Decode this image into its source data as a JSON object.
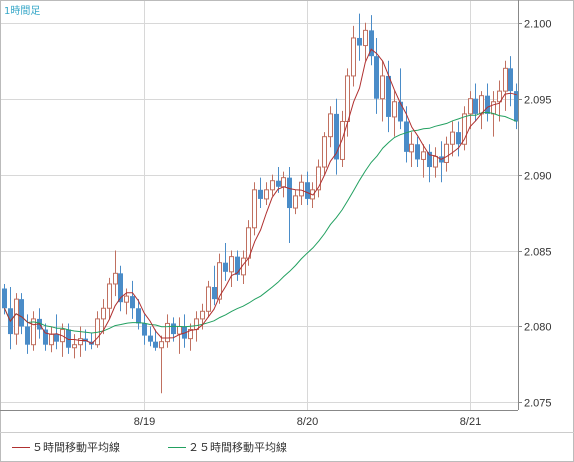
{
  "chart_data": {
    "type": "candlestick",
    "title": "1時間足",
    "ylim": [
      2.0745,
      2.1015
    ],
    "yticks": [
      "2.100",
      "2.095",
      "2.090",
      "2.085",
      "2.080",
      "2.075"
    ],
    "xticks": [
      {
        "label": "8/19",
        "index": 24
      },
      {
        "label": "8/20",
        "index": 52
      },
      {
        "label": "8/21",
        "index": 80
      }
    ],
    "grid": true,
    "colors": {
      "up": "#c07060",
      "down": "#4a8cc8",
      "ma5": "#b03030",
      "ma25": "#22a060",
      "grid": "#d8d8d8",
      "frame": "#888888",
      "title": "#36a7c8"
    },
    "legend": [
      {
        "label": "５時間移動平均線",
        "color": "#b03030"
      },
      {
        "label": "２５時間移動平均線",
        "color": "#22a060"
      }
    ],
    "ohlc": [
      [
        2.0825,
        2.0828,
        2.0808,
        2.0812
      ],
      [
        2.0812,
        2.0826,
        2.0785,
        2.0795
      ],
      [
        2.0795,
        2.0822,
        2.0788,
        2.0818
      ],
      [
        2.0818,
        2.0822,
        2.0795,
        2.08
      ],
      [
        2.08,
        2.0808,
        2.0782,
        2.0788
      ],
      [
        2.0788,
        2.081,
        2.0784,
        2.0805
      ],
      [
        2.0805,
        2.0812,
        2.0792,
        2.0798
      ],
      [
        2.0798,
        2.0802,
        2.0784,
        2.0788
      ],
      [
        2.0788,
        2.08,
        2.0783,
        2.0795
      ],
      [
        2.0795,
        2.0808,
        2.0785,
        2.079
      ],
      [
        2.079,
        2.0802,
        2.078,
        2.0798
      ],
      [
        2.0798,
        2.0802,
        2.0782,
        2.0786
      ],
      [
        2.0786,
        2.0795,
        2.0779,
        2.0788
      ],
      [
        2.0788,
        2.08,
        2.078,
        2.0792
      ],
      [
        2.0792,
        2.0798,
        2.0784,
        2.079
      ],
      [
        2.079,
        2.0796,
        2.0785,
        2.0788
      ],
      [
        2.0788,
        2.081,
        2.0786,
        2.0805
      ],
      [
        2.0805,
        2.0818,
        2.0795,
        2.0812
      ],
      [
        2.0812,
        2.0832,
        2.0805,
        2.0828
      ],
      [
        2.0828,
        2.085,
        2.082,
        2.0835
      ],
      [
        2.0835,
        2.084,
        2.081,
        2.0816
      ],
      [
        2.0816,
        2.0825,
        2.0808,
        2.082
      ],
      [
        2.082,
        2.083,
        2.0805,
        2.0812
      ],
      [
        2.0812,
        2.0818,
        2.0798,
        2.0802
      ],
      [
        2.0802,
        2.0808,
        2.0788,
        2.0794
      ],
      [
        2.0794,
        2.08,
        2.0787,
        2.079
      ],
      [
        2.079,
        2.0798,
        2.0784,
        2.0786
      ],
      [
        2.0786,
        2.0794,
        2.0756,
        2.079
      ],
      [
        2.079,
        2.0808,
        2.0786,
        2.0802
      ],
      [
        2.0802,
        2.0806,
        2.079,
        2.0795
      ],
      [
        2.0795,
        2.0806,
        2.0782,
        2.08
      ],
      [
        2.08,
        2.0808,
        2.0786,
        2.0792
      ],
      [
        2.0792,
        2.0802,
        2.0784,
        2.0798
      ],
      [
        2.0798,
        2.081,
        2.079,
        2.0805
      ],
      [
        2.0805,
        2.0815,
        2.0798,
        2.081
      ],
      [
        2.081,
        2.083,
        2.0806,
        2.0826
      ],
      [
        2.0826,
        2.084,
        2.0814,
        2.0818
      ],
      [
        2.0818,
        2.0848,
        2.0815,
        2.0842
      ],
      [
        2.0842,
        2.0855,
        2.083,
        2.0836
      ],
      [
        2.0836,
        2.085,
        2.0826,
        2.0846
      ],
      [
        2.0846,
        2.085,
        2.083,
        2.0834
      ],
      [
        2.0834,
        2.085,
        2.0828,
        2.0845
      ],
      [
        2.0845,
        2.087,
        2.084,
        2.0865
      ],
      [
        2.0865,
        2.0895,
        2.086,
        2.089
      ],
      [
        2.089,
        2.0898,
        2.0878,
        2.0884
      ],
      [
        2.0884,
        2.0895,
        2.088,
        2.089
      ],
      [
        2.089,
        2.09,
        2.0886,
        2.0896
      ],
      [
        2.0896,
        2.0905,
        2.0888,
        2.0892
      ],
      [
        2.0892,
        2.0902,
        2.0885,
        2.0898
      ],
      [
        2.0898,
        2.0905,
        2.0855,
        2.0878
      ],
      [
        2.0878,
        2.089,
        2.0874,
        2.0886
      ],
      [
        2.0886,
        2.09,
        2.088,
        2.0895
      ],
      [
        2.0895,
        2.0902,
        2.088,
        2.0884
      ],
      [
        2.0884,
        2.0895,
        2.0878,
        2.089
      ],
      [
        2.089,
        2.091,
        2.0885,
        2.0905
      ],
      [
        2.0905,
        2.0928,
        2.09,
        2.0925
      ],
      [
        2.0925,
        2.0945,
        2.0918,
        2.094
      ],
      [
        2.094,
        2.095,
        2.09,
        2.091
      ],
      [
        2.091,
        2.0942,
        2.0905,
        2.0935
      ],
      [
        2.0935,
        2.097,
        2.0925,
        2.0965
      ],
      [
        2.0965,
        2.0998,
        2.0958,
        2.099
      ],
      [
        2.099,
        2.1006,
        2.0975,
        2.0985
      ],
      [
        2.0985,
        2.1,
        2.0975,
        2.0995
      ],
      [
        2.0995,
        2.1005,
        2.0972,
        2.0978
      ],
      [
        2.0978,
        2.099,
        2.094,
        2.095
      ],
      [
        2.095,
        2.0975,
        2.0935,
        2.0965
      ],
      [
        2.0965,
        2.0975,
        2.0928,
        2.0938
      ],
      [
        2.0938,
        2.0955,
        2.0925,
        2.0948
      ],
      [
        2.0948,
        2.097,
        2.093,
        2.0935
      ],
      [
        2.0935,
        2.0945,
        2.0908,
        2.0915
      ],
      [
        2.0915,
        2.0928,
        2.0905,
        2.092
      ],
      [
        2.092,
        2.0925,
        2.0905,
        2.091
      ],
      [
        2.091,
        2.092,
        2.0898,
        2.0915
      ],
      [
        2.0915,
        2.092,
        2.0895,
        2.0905
      ],
      [
        2.0905,
        2.0918,
        2.0898,
        2.0912
      ],
      [
        2.0912,
        2.0922,
        2.0895,
        2.0908
      ],
      [
        2.0908,
        2.0925,
        2.0902,
        2.092
      ],
      [
        2.092,
        2.0935,
        2.0912,
        2.0928
      ],
      [
        2.0928,
        2.0935,
        2.0912,
        2.092
      ],
      [
        2.092,
        2.0945,
        2.0916,
        2.094
      ],
      [
        2.094,
        2.0955,
        2.093,
        2.095
      ],
      [
        2.095,
        2.096,
        2.0935,
        2.094
      ],
      [
        2.094,
        2.0955,
        2.093,
        2.0952
      ],
      [
        2.0952,
        2.096,
        2.0935,
        2.094
      ],
      [
        2.094,
        2.0955,
        2.0925,
        2.0948
      ],
      [
        2.0948,
        2.0962,
        2.0935,
        2.0955
      ],
      [
        2.0955,
        2.0975,
        2.0942,
        2.097
      ],
      [
        2.097,
        2.0978,
        2.0945,
        2.0955
      ],
      [
        2.0955,
        2.096,
        2.093,
        2.0935
      ]
    ]
  }
}
